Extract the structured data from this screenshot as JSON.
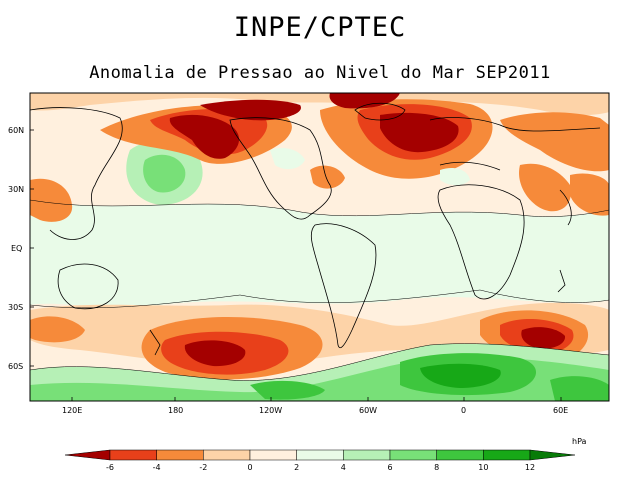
{
  "header": {
    "institution": "INPE/CPTEC",
    "map_title": "Anomalia de Pressao ao Nivel do Mar SEP2011"
  },
  "map": {
    "projection": "cylindrical equidistant",
    "variable": "Sea level pressure anomaly",
    "period": "SEP2011",
    "lat_labels": [
      "60N",
      "30N",
      "EQ",
      "30S",
      "60S"
    ],
    "lon_labels": [
      "120E",
      "180",
      "120W",
      "60W",
      "0",
      "60E"
    ],
    "anomaly_regions": [
      {
        "name": "North Pacific high anomaly",
        "lon": 175,
        "lat": 55,
        "value_hpa": -6
      },
      {
        "name": "Alaska / Bering low anomaly",
        "lon": -150,
        "lat": 58,
        "value_hpa": -6
      },
      {
        "name": "North Atlantic low anomaly",
        "lon": -15,
        "lat": 58,
        "value_hpa": -6
      },
      {
        "name": "South Pacific negative anomaly",
        "lon": -160,
        "lat": -52,
        "value_hpa": -6
      },
      {
        "name": "South Indian Ocean negative anomaly",
        "lon": 50,
        "lat": -48,
        "value_hpa": -6
      },
      {
        "name": "Antarctic circumpolar positive anomaly",
        "lon": -20,
        "lat": -68,
        "value_hpa": 10
      },
      {
        "name": "North Pacific positive anomaly",
        "lon": 170,
        "lat": 40,
        "value_hpa": 4
      },
      {
        "name": "East Asia negative anomaly",
        "lon": 105,
        "lat": 32,
        "value_hpa": -2
      }
    ]
  },
  "colorbar": {
    "unit": "hPa",
    "tick_labels": [
      "-6",
      "-4",
      "-2",
      "0",
      "2",
      "4",
      "6",
      "8",
      "10",
      "12"
    ],
    "colors": [
      "#a40000",
      "#e8401a",
      "#f68a3a",
      "#fdd3a8",
      "#fff0de",
      "#e9fbe8",
      "#b6f0b6",
      "#78e078",
      "#3ec63e",
      "#17a817",
      "#087b08"
    ]
  }
}
